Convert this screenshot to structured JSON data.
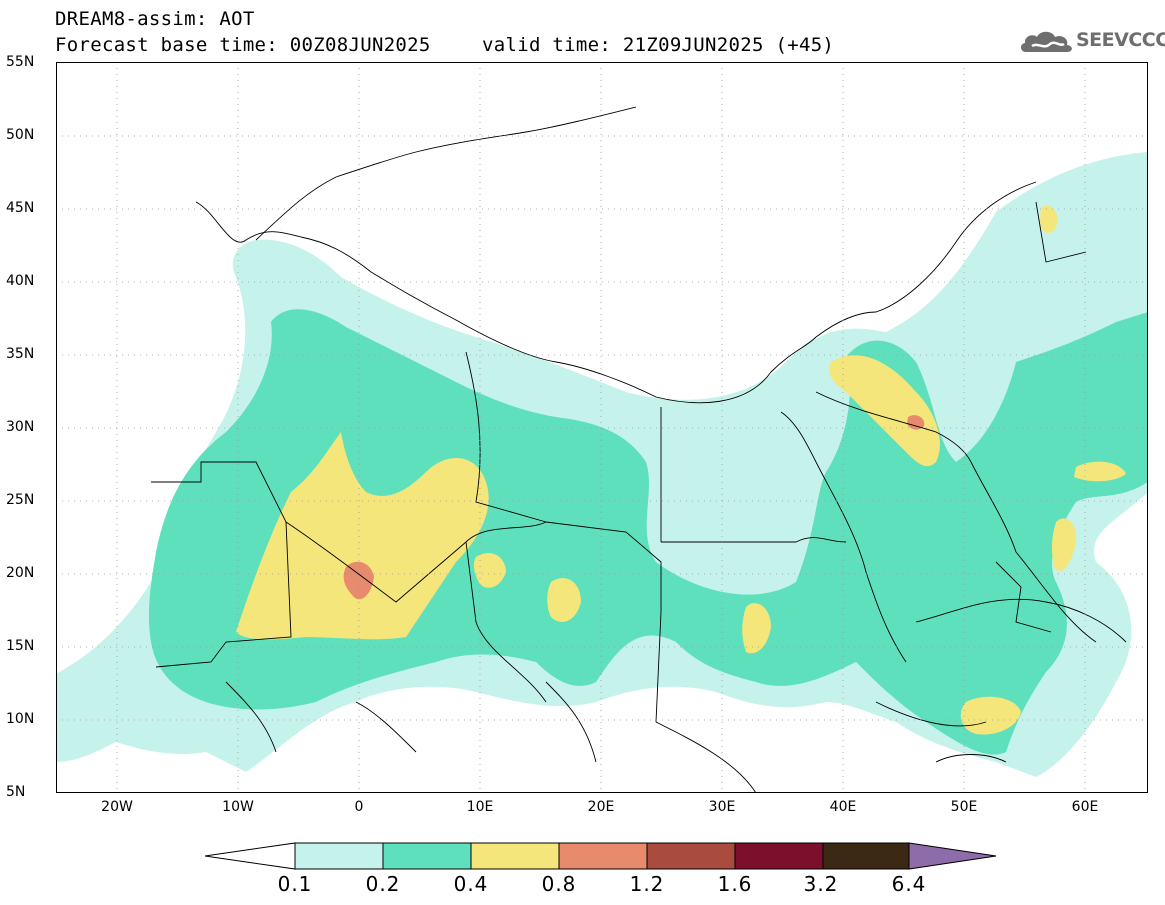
{
  "title": {
    "line1": "DREAM8-assim: AOT",
    "base_time": "Forecast base time: 00Z08JUN2025",
    "valid_time": "valid time: 21Z09JUN2025 (+45)"
  },
  "logo": {
    "text": "SEEVCCC",
    "icon": "cloud-icon"
  },
  "map": {
    "region": "North Africa / Middle East",
    "lat_range": [
      5,
      55
    ],
    "lon_range": [
      -25,
      65
    ],
    "lat_labels": [
      "55N",
      "50N",
      "45N",
      "40N",
      "35N",
      "30N",
      "25N",
      "20N",
      "15N",
      "10N",
      "5N"
    ],
    "lon_labels": [
      "20W",
      "10W",
      "0",
      "10E",
      "20E",
      "30E",
      "40E",
      "50E",
      "60E"
    ],
    "grid": "dotted"
  },
  "colorbar": {
    "labels": [
      "0.1",
      "0.2",
      "0.4",
      "0.8",
      "1.2",
      "1.6",
      "3.2",
      "6.4"
    ],
    "colors": [
      "#c6f2ec",
      "#5fe0bd",
      "#f4e67a",
      "#e88a6c",
      "#a94b3e",
      "#7b0f2c",
      "#3b2815",
      "#8e6ba9"
    ],
    "lower_extend_color": "#ffffff"
  }
}
